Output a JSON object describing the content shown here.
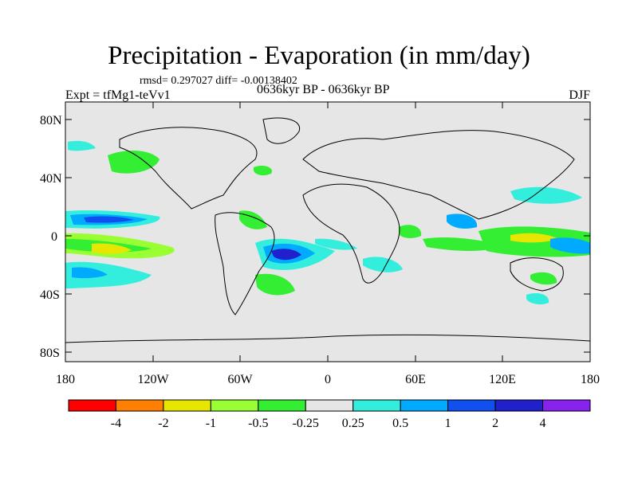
{
  "title": "Precipitation - Evaporation (in mm/day)",
  "stats": "rmsd= 0.297027 diff= -0.00138402",
  "expt": "Expt = tfMg1-teVv1",
  "period": "0636kyr BP - 0636kyr BP",
  "season": "DJF",
  "lat_labels": [
    "80N",
    "40N",
    "0",
    "40S",
    "80S"
  ],
  "lon_labels": [
    "180",
    "120W",
    "60W",
    "0",
    "60E",
    "120E",
    "180"
  ],
  "colorbar": {
    "labels": [
      "-4",
      "-2",
      "-1",
      "-0.5",
      "-0.25",
      "0.25",
      "0.5",
      "1",
      "2",
      "4"
    ],
    "colors": [
      "#ff0000",
      "#ff8000",
      "#e6e600",
      "#99ff33",
      "#33ee33",
      "#e6e6e6",
      "#33eedd",
      "#00aaff",
      "#1050ee",
      "#2020cc",
      "#8822ee"
    ]
  },
  "colors": {
    "ocean_bg": "#e6e6e6",
    "coast": "#000000"
  }
}
